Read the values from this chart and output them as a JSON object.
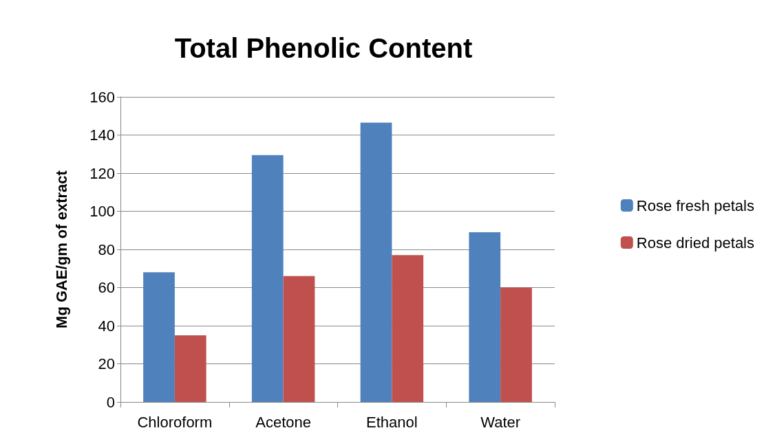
{
  "chart_data": {
    "type": "bar",
    "title": "Total Phenolic Content",
    "ylabel": "Mg GAE/gm of extract",
    "categories": [
      "Chloroform",
      "Acetone",
      "Ethanol",
      "Water"
    ],
    "series": [
      {
        "name": "Rose fresh petals",
        "color": "#4f81bd",
        "values": [
          68,
          129.5,
          146.5,
          89
        ]
      },
      {
        "name": "Rose dried petals",
        "color": "#c0504d",
        "values": [
          35,
          66,
          77,
          60
        ]
      }
    ],
    "ylim": [
      0,
      160
    ],
    "yticks": [
      0,
      20,
      40,
      60,
      80,
      100,
      120,
      140,
      160
    ],
    "grid": "y",
    "legend": "right"
  }
}
